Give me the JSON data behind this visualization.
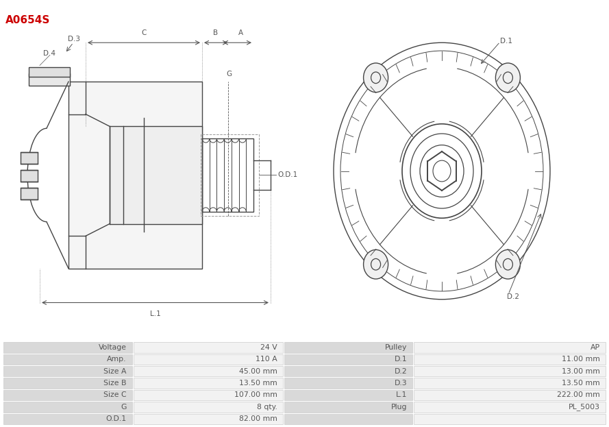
{
  "title": "A0654S",
  "title_color": "#cc0000",
  "table_data": [
    [
      "Voltage",
      "24 V",
      "Pulley",
      "AP"
    ],
    [
      "Amp.",
      "110 A",
      "D.1",
      "11.00 mm"
    ],
    [
      "Size A",
      "45.00 mm",
      "D.2",
      "13.00 mm"
    ],
    [
      "Size B",
      "13.50 mm",
      "D.3",
      "13.50 mm"
    ],
    [
      "Size C",
      "107.00 mm",
      "L.1",
      "222.00 mm"
    ],
    [
      "G",
      "8 qty.",
      "Plug",
      "PL_5003"
    ],
    [
      "O.D.1",
      "82.00 mm",
      "",
      ""
    ]
  ],
  "table_header_bg": "#d9d9d9",
  "table_row_bg": "#f2f2f2",
  "text_color": "#555555",
  "bg_color": "#ffffff",
  "dim_color": "#555555",
  "line_color": "#444444"
}
